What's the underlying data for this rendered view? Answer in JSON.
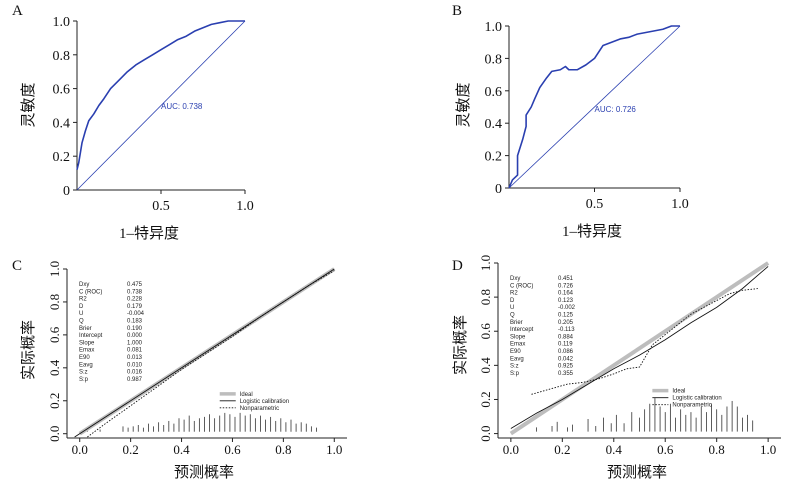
{
  "chart_data": [
    {
      "id": "A",
      "type": "line",
      "panel_label": "A",
      "xlabel": "1–特异度",
      "ylabel": "灵敏度",
      "xlim": [
        0,
        1
      ],
      "ylim": [
        0,
        1
      ],
      "xticks": [
        0.5,
        1.0
      ],
      "xtick_labels": [
        "0.5",
        "1.0"
      ],
      "yticks": [
        0,
        0.2,
        0.4,
        0.6,
        0.8,
        1.0
      ],
      "ytick_labels": [
        "0",
        "0.2",
        "0.4",
        "0.6",
        "0.8",
        "1.0"
      ],
      "annotation": "AUC: 0.738",
      "series": [
        {
          "name": "ROC",
          "color": "#2a3fb0",
          "x": [
            0,
            0.01,
            0.02,
            0.03,
            0.05,
            0.07,
            0.1,
            0.13,
            0.16,
            0.2,
            0.25,
            0.3,
            0.35,
            0.4,
            0.45,
            0.5,
            0.55,
            0.6,
            0.65,
            0.7,
            0.75,
            0.8,
            0.85,
            0.9,
            0.95,
            1.0
          ],
          "y": [
            0.12,
            0.16,
            0.22,
            0.28,
            0.35,
            0.41,
            0.45,
            0.5,
            0.54,
            0.6,
            0.65,
            0.7,
            0.74,
            0.77,
            0.8,
            0.83,
            0.86,
            0.89,
            0.91,
            0.94,
            0.96,
            0.98,
            0.99,
            1.0,
            1.0,
            1.0
          ]
        },
        {
          "name": "Reference",
          "color": "#2a3fb0",
          "x": [
            0,
            1
          ],
          "y": [
            0,
            1
          ]
        }
      ]
    },
    {
      "id": "B",
      "type": "line",
      "panel_label": "B",
      "xlabel": "1–特异度",
      "ylabel": "灵敏度",
      "xlim": [
        0,
        1
      ],
      "ylim": [
        0,
        1
      ],
      "xticks": [
        0.5,
        1.0
      ],
      "xtick_labels": [
        "0.5",
        "1.0"
      ],
      "yticks": [
        0,
        0.2,
        0.4,
        0.6,
        0.8,
        1.0
      ],
      "ytick_labels": [
        "0",
        "0.2",
        "0.4",
        "0.6",
        "0.8",
        "1.0"
      ],
      "annotation": "AUC: 0.726",
      "series": [
        {
          "name": "ROC",
          "color": "#2a3fb0",
          "x": [
            0,
            0.02,
            0.05,
            0.05,
            0.08,
            0.1,
            0.1,
            0.13,
            0.15,
            0.18,
            0.2,
            0.22,
            0.25,
            0.3,
            0.33,
            0.35,
            0.4,
            0.45,
            0.5,
            0.55,
            0.6,
            0.65,
            0.7,
            0.75,
            0.8,
            0.85,
            0.9,
            0.95,
            1.0
          ],
          "y": [
            0,
            0.05,
            0.08,
            0.2,
            0.3,
            0.38,
            0.45,
            0.5,
            0.55,
            0.62,
            0.65,
            0.68,
            0.72,
            0.73,
            0.75,
            0.73,
            0.73,
            0.76,
            0.8,
            0.88,
            0.9,
            0.92,
            0.93,
            0.95,
            0.96,
            0.97,
            0.98,
            1.0,
            1.0
          ]
        },
        {
          "name": "Reference",
          "color": "#2a3fb0",
          "x": [
            0,
            1
          ],
          "y": [
            0,
            1
          ]
        }
      ]
    },
    {
      "id": "C",
      "type": "line",
      "panel_label": "C",
      "xlabel": "预测概率",
      "ylabel": "实际概率",
      "xlim": [
        -0.05,
        1.05
      ],
      "ylim": [
        -0.02,
        1.0
      ],
      "xticks": [
        0,
        0.2,
        0.4,
        0.6,
        0.8,
        1.0
      ],
      "xtick_labels": [
        "0.0",
        "0.2",
        "0.4",
        "0.6",
        "0.8",
        "1.0"
      ],
      "yticks": [
        0,
        0.2,
        0.4,
        0.6,
        0.8,
        1.0
      ],
      "ytick_labels": [
        "0.0",
        "0.2",
        "0.4",
        "0.6",
        "0.8",
        "1.0"
      ],
      "stats": [
        {
          "name": "Dxy",
          "value": "0.475"
        },
        {
          "name": "C (ROC)",
          "value": "0.738"
        },
        {
          "name": "R2",
          "value": "0.228"
        },
        {
          "name": "D",
          "value": "0.179"
        },
        {
          "name": "U",
          "value": "-0.004"
        },
        {
          "name": "Q",
          "value": "0.183"
        },
        {
          "name": "Brier",
          "value": "0.190"
        },
        {
          "name": "Intercept",
          "value": "0.000"
        },
        {
          "name": "Slope",
          "value": "1.000"
        },
        {
          "name": "Emax",
          "value": "0.081"
        },
        {
          "name": "E90",
          "value": "0.013"
        },
        {
          "name": "Eavg",
          "value": "0.010"
        },
        {
          "name": "S:z",
          "value": "0.016"
        },
        {
          "name": "S:p",
          "value": "0.987"
        }
      ],
      "legend": [
        "Ideal",
        "Logistic calibration",
        "Nonparametric"
      ],
      "series": [
        {
          "name": "Ideal",
          "x": [
            0,
            1
          ],
          "y": [
            0,
            1
          ]
        },
        {
          "name": "Logistic calibration",
          "x": [
            -0.02,
            1.0
          ],
          "y": [
            -0.02,
            1.0
          ]
        },
        {
          "name": "Nonparametric",
          "x": [
            0.03,
            0.1,
            0.2,
            0.3,
            0.4,
            0.5,
            0.6,
            0.7,
            0.8,
            0.9,
            1.0
          ],
          "y": [
            -0.02,
            0.06,
            0.17,
            0.28,
            0.39,
            0.49,
            0.59,
            0.7,
            0.8,
            0.9,
            0.99
          ]
        }
      ],
      "histogram": {
        "x": [
          0.03,
          0.08,
          0.17,
          0.19,
          0.21,
          0.23,
          0.25,
          0.27,
          0.29,
          0.31,
          0.33,
          0.35,
          0.37,
          0.39,
          0.41,
          0.43,
          0.45,
          0.47,
          0.49,
          0.51,
          0.53,
          0.55,
          0.57,
          0.59,
          0.61,
          0.63,
          0.65,
          0.67,
          0.69,
          0.71,
          0.73,
          0.75,
          0.77,
          0.79,
          0.81,
          0.83,
          0.85,
          0.87,
          0.89,
          0.91,
          0.93
        ],
        "h": [
          0.005,
          0.008,
          0.02,
          0.015,
          0.02,
          0.025,
          0.015,
          0.03,
          0.02,
          0.035,
          0.025,
          0.04,
          0.03,
          0.05,
          0.045,
          0.06,
          0.04,
          0.05,
          0.055,
          0.065,
          0.05,
          0.06,
          0.07,
          0.065,
          0.055,
          0.07,
          0.06,
          0.065,
          0.05,
          0.06,
          0.045,
          0.055,
          0.04,
          0.05,
          0.035,
          0.045,
          0.03,
          0.035,
          0.03,
          0.02,
          0.015
        ]
      }
    },
    {
      "id": "D",
      "type": "line",
      "panel_label": "D",
      "xlabel": "预测概率",
      "ylabel": "实际概率",
      "xlim": [
        -0.05,
        1.05
      ],
      "ylim": [
        -0.02,
        1.0
      ],
      "xticks": [
        0,
        0.2,
        0.4,
        0.6,
        0.8,
        1.0
      ],
      "xtick_labels": [
        "0.0",
        "0.2",
        "0.4",
        "0.6",
        "0.8",
        "1.0"
      ],
      "yticks": [
        0,
        0.2,
        0.4,
        0.6,
        0.8,
        1.0
      ],
      "ytick_labels": [
        "0.0",
        "0.2",
        "0.4",
        "0.6",
        "0.8",
        "1.0"
      ],
      "stats": [
        {
          "name": "Dxy",
          "value": "0.451"
        },
        {
          "name": "C (ROC)",
          "value": "0.726"
        },
        {
          "name": "R2",
          "value": "0.164"
        },
        {
          "name": "D",
          "value": "0.123"
        },
        {
          "name": "U",
          "value": "-0.002"
        },
        {
          "name": "Q",
          "value": "0.125"
        },
        {
          "name": "Brier",
          "value": "0.205"
        },
        {
          "name": "Intercept",
          "value": "-0.113"
        },
        {
          "name": "Slope",
          "value": "0.884"
        },
        {
          "name": "Emax",
          "value": "0.119"
        },
        {
          "name": "E90",
          "value": "0.086"
        },
        {
          "name": "Eavg",
          "value": "0.042"
        },
        {
          "name": "S:z",
          "value": "0.925"
        },
        {
          "name": "S:p",
          "value": "0.355"
        }
      ],
      "legend": [
        "Ideal",
        "Logistic calibration",
        "Nonparametric"
      ],
      "series": [
        {
          "name": "Ideal",
          "x": [
            0,
            1
          ],
          "y": [
            0,
            1
          ]
        },
        {
          "name": "Logistic calibration",
          "x": [
            0.0,
            0.1,
            0.2,
            0.3,
            0.4,
            0.5,
            0.6,
            0.7,
            0.8,
            0.9,
            1.0
          ],
          "y": [
            0.03,
            0.12,
            0.2,
            0.29,
            0.38,
            0.46,
            0.55,
            0.65,
            0.74,
            0.85,
            0.98
          ]
        },
        {
          "name": "Nonparametric",
          "x": [
            0.08,
            0.15,
            0.22,
            0.28,
            0.34,
            0.4,
            0.45,
            0.5,
            0.55,
            0.6,
            0.65,
            0.7,
            0.75,
            0.8,
            0.85,
            0.9,
            0.96
          ],
          "y": [
            0.23,
            0.26,
            0.29,
            0.3,
            0.32,
            0.35,
            0.38,
            0.39,
            0.52,
            0.58,
            0.64,
            0.7,
            0.74,
            0.78,
            0.82,
            0.84,
            0.85
          ]
        }
      ],
      "histogram": {
        "x": [
          0.1,
          0.16,
          0.18,
          0.22,
          0.24,
          0.3,
          0.33,
          0.36,
          0.39,
          0.41,
          0.44,
          0.47,
          0.5,
          0.52,
          0.54,
          0.56,
          0.58,
          0.6,
          0.62,
          0.64,
          0.66,
          0.68,
          0.7,
          0.72,
          0.74,
          0.76,
          0.78,
          0.8,
          0.82,
          0.84,
          0.86,
          0.88,
          0.9,
          0.92,
          0.94
        ],
        "h": [
          0.015,
          0.02,
          0.035,
          0.015,
          0.025,
          0.045,
          0.02,
          0.05,
          0.03,
          0.06,
          0.03,
          0.07,
          0.05,
          0.08,
          0.1,
          0.12,
          0.09,
          0.07,
          0.1,
          0.05,
          0.08,
          0.06,
          0.07,
          0.05,
          0.09,
          0.07,
          0.1,
          0.08,
          0.06,
          0.09,
          0.11,
          0.09,
          0.05,
          0.06,
          0.04
        ]
      }
    }
  ]
}
